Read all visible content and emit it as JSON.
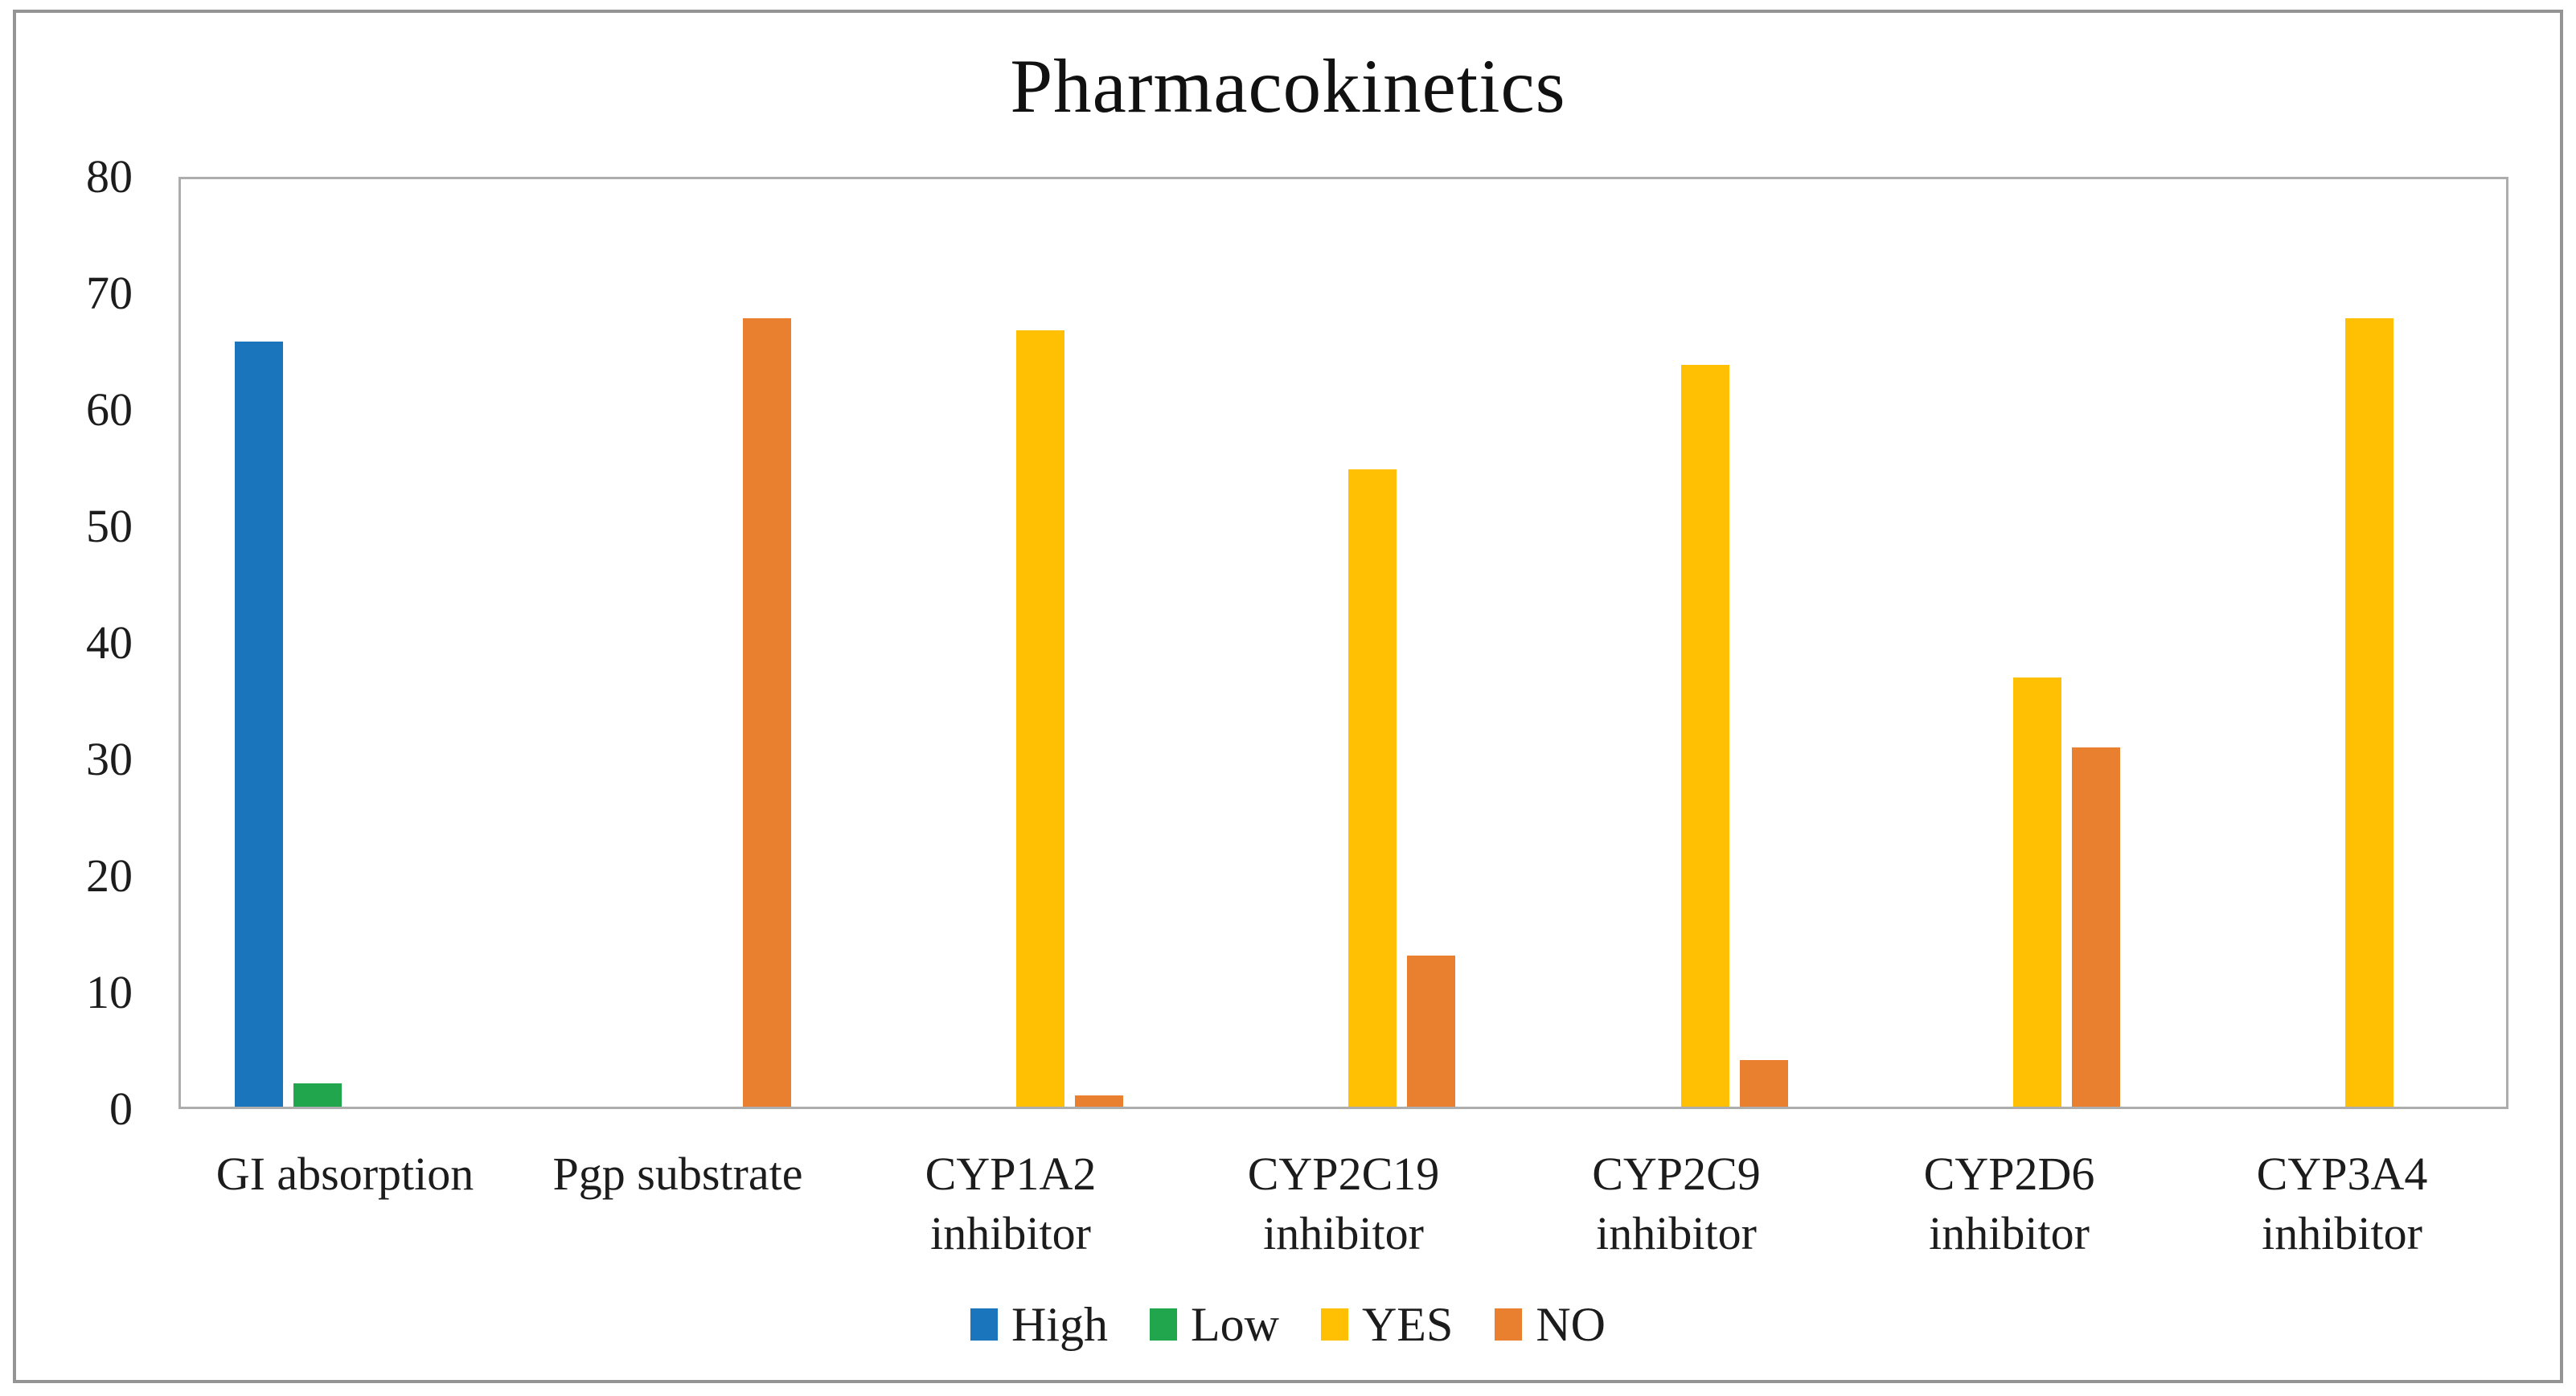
{
  "figure": {
    "background": "#FFFFFF",
    "border_color": "#949494"
  },
  "chart_data": {
    "type": "bar",
    "title": "Pharmacokinetics",
    "xlabel": "",
    "ylabel": "",
    "ylim": [
      0,
      80
    ],
    "yticks": [
      0,
      10,
      20,
      30,
      40,
      50,
      60,
      70,
      80
    ],
    "grid": false,
    "legend_position": "bottom",
    "plot_border_color": "#ADADAD",
    "categories": [
      {
        "lines": [
          "GI absorption"
        ]
      },
      {
        "lines": [
          "Pgp substrate"
        ]
      },
      {
        "lines": [
          "CYP1A2",
          "inhibitor"
        ]
      },
      {
        "lines": [
          "CYP2C19",
          "inhibitor"
        ]
      },
      {
        "lines": [
          "CYP2C9",
          "inhibitor"
        ]
      },
      {
        "lines": [
          "CYP2D6",
          "inhibitor"
        ]
      },
      {
        "lines": [
          "CYP3A4",
          "inhibitor"
        ]
      }
    ],
    "series": [
      {
        "name": "High",
        "color": "#1B75BC",
        "values": [
          66,
          null,
          null,
          null,
          null,
          null,
          null
        ]
      },
      {
        "name": "Low",
        "color": "#21A64D",
        "values": [
          2,
          null,
          null,
          null,
          null,
          null,
          null
        ]
      },
      {
        "name": "YES",
        "color": "#FFC004",
        "values": [
          null,
          null,
          67,
          55,
          64,
          37,
          68
        ]
      },
      {
        "name": "NO",
        "color": "#E8802F",
        "values": [
          null,
          68,
          1,
          13,
          4,
          31,
          null
        ]
      }
    ]
  }
}
